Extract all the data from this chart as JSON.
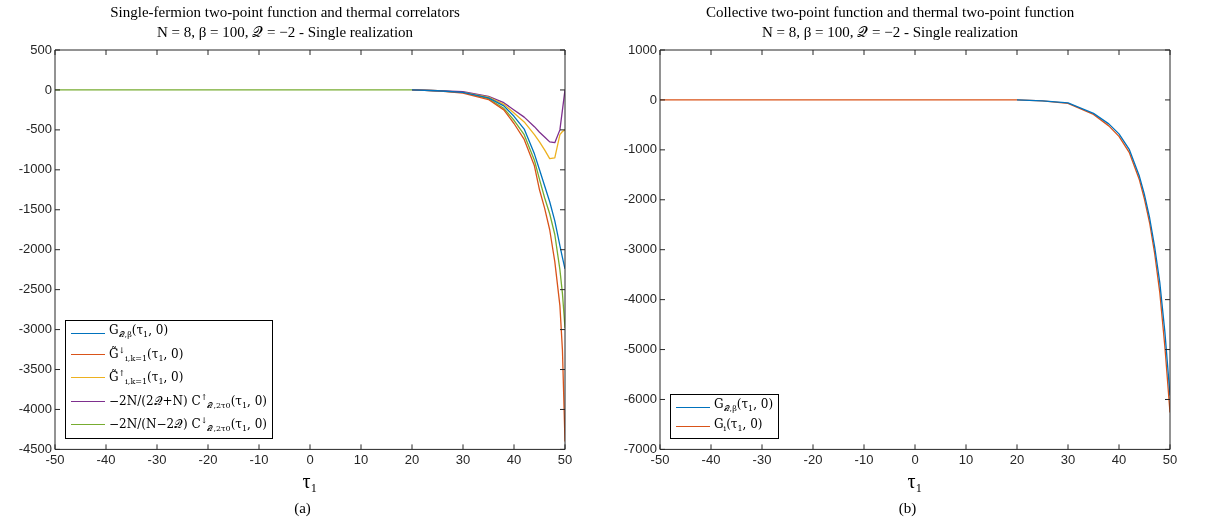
{
  "chart_data": [
    {
      "type": "line",
      "title": "Single-fermion two-point function and thermal correlators",
      "subtitle": "N = 8, β = 100, 𝒬 = −2 - Single realization",
      "xlabel": "τ₁",
      "annotations": [
        "(a)"
      ],
      "xlim": [
        -50,
        50
      ],
      "xticks": [
        -50,
        -40,
        -30,
        -20,
        -10,
        0,
        10,
        20,
        30,
        40,
        50
      ],
      "ylim": [
        -4500,
        500
      ],
      "yticks": [
        -4500,
        -4000,
        -3500,
        -3000,
        -2500,
        -2000,
        -1500,
        -1000,
        -500,
        0,
        500
      ],
      "grid": false,
      "legend": "bottom left",
      "line_style": "solid",
      "marker": "none",
      "x": [
        -50,
        -40,
        -30,
        -20,
        -10,
        0,
        10,
        20,
        25,
        30,
        35,
        38,
        40,
        42,
        44,
        45,
        46,
        47,
        48,
        49,
        49.5,
        50
      ],
      "series": [
        {
          "name": "G$_{𝒬,β}$(τ$_{1}$, 0)",
          "color": "#0072bd",
          "values": [
            null,
            null,
            null,
            null,
            null,
            null,
            null,
            0,
            -10,
            -30,
            -100,
            -200,
            -330,
            -490,
            -800,
            -1000,
            -1200,
            -1400,
            -1640,
            -1950,
            -2100,
            -2240
          ]
        },
        {
          "name": "G̃$^{↓}$$_{i,k=1}$(τ$_{1}$, 0)",
          "color": "#d95319",
          "values": [
            null,
            null,
            null,
            null,
            null,
            null,
            null,
            0,
            -10,
            -40,
            -120,
            -250,
            -420,
            -620,
            -950,
            -1250,
            -1480,
            -1750,
            -2150,
            -2700,
            -3260,
            -4400
          ]
        },
        {
          "name": "G̃$^{↑}$$_{i,k=1}$(τ$_{1}$, 0)",
          "color": "#edb120",
          "values": [
            null,
            null,
            null,
            null,
            null,
            null,
            null,
            null,
            null,
            -30,
            -90,
            -180,
            -290,
            -400,
            -560,
            -650,
            -750,
            -860,
            -850,
            -560,
            -520,
            -500
          ]
        },
        {
          "name": "−2N/(2𝒬+N) C$^{↑}$$_{𝒬,2τ0}$(τ$_{1}$, 0)",
          "color": "#7e2f8e",
          "values": [
            null,
            null,
            null,
            null,
            null,
            null,
            null,
            0,
            -10,
            -20,
            -80,
            -160,
            -250,
            -340,
            -460,
            -530,
            -590,
            -650,
            -660,
            -500,
            -250,
            0
          ]
        },
        {
          "name": "−2N/(N−2𝒬) C$^{↓}$$_{𝒬,2τ0}$(τ$_{1}$, 0)",
          "color": "#77ac30",
          "values": [
            0,
            0,
            0,
            0,
            0,
            0,
            0,
            0,
            -10,
            -30,
            -110,
            -230,
            -380,
            -560,
            -880,
            -1120,
            -1350,
            -1550,
            -1810,
            -2250,
            -2550,
            -2980
          ]
        }
      ]
    },
    {
      "type": "line",
      "title": "Collective two-point function and thermal two-point function",
      "subtitle": "N = 8, β = 100, 𝒬 = −2 - Single realization",
      "xlabel": "τ₁",
      "annotations": [
        "(b)"
      ],
      "xlim": [
        -50,
        50
      ],
      "xticks": [
        -50,
        -40,
        -30,
        -20,
        -10,
        0,
        10,
        20,
        30,
        40,
        50
      ],
      "ylim": [
        -7000,
        1000
      ],
      "yticks": [
        -7000,
        -6000,
        -5000,
        -4000,
        -3000,
        -2000,
        -1000,
        0,
        1000
      ],
      "grid": false,
      "legend": "bottom left",
      "line_style": "solid",
      "marker": "none",
      "x": [
        -50,
        -40,
        -30,
        -20,
        -10,
        0,
        10,
        20,
        25,
        30,
        35,
        38,
        40,
        42,
        44,
        45,
        46,
        47,
        48,
        49,
        50
      ],
      "series": [
        {
          "name": "G$_{𝒬,β}$(τ$_{1}$, 0)",
          "color": "#0072bd",
          "values": [
            null,
            null,
            null,
            null,
            null,
            null,
            null,
            0,
            -20,
            -60,
            -270,
            -480,
            -680,
            -990,
            -1530,
            -1900,
            -2360,
            -2950,
            -3660,
            -4650,
            -5920
          ]
        },
        {
          "name": "G$_{i}$(τ$_{1}$, 0)",
          "color": "#d95319",
          "values": [
            0,
            0,
            0,
            0,
            0,
            0,
            0,
            0,
            -20,
            -70,
            -290,
            -520,
            -730,
            -1050,
            -1600,
            -1990,
            -2460,
            -3080,
            -3860,
            -4950,
            -6260
          ]
        }
      ]
    }
  ]
}
